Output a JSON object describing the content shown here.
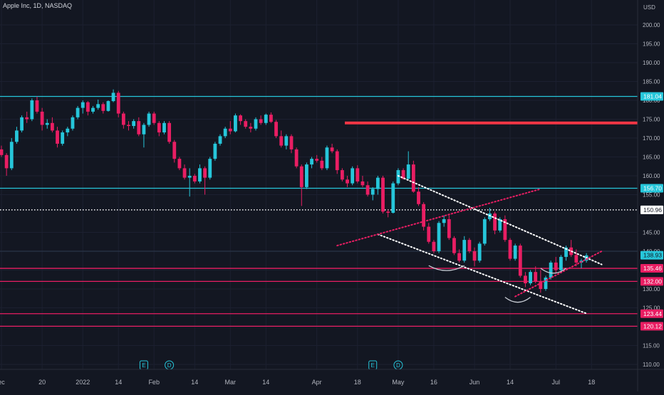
{
  "header": {
    "title": "Apple Inc, 1D, NASDAQ",
    "currency": "USD"
  },
  "chart_data": {
    "type": "candlestick",
    "ylim": [
      105,
      206
    ],
    "y_ticks": [
      110,
      115,
      120,
      125,
      130,
      135,
      140,
      145,
      155,
      160,
      165,
      170,
      175,
      180,
      185,
      190,
      195,
      200
    ],
    "x_ticks": [
      {
        "label": "ec",
        "i": 0
      },
      {
        "label": "20",
        "i": 8
      },
      {
        "label": "2022",
        "i": 16
      },
      {
        "label": "14",
        "i": 23
      },
      {
        "label": "Feb",
        "i": 30
      },
      {
        "label": "14",
        "i": 38
      },
      {
        "label": "Mar",
        "i": 45
      },
      {
        "label": "14",
        "i": 52
      },
      {
        "label": "Apr",
        "i": 62
      },
      {
        "label": "18",
        "i": 70
      },
      {
        "label": "May",
        "i": 78
      },
      {
        "label": "16",
        "i": 85
      },
      {
        "label": "Jun",
        "i": 93
      },
      {
        "label": "14",
        "i": 100
      },
      {
        "label": "Jul",
        "i": 109
      },
      {
        "label": "18",
        "i": 116
      }
    ],
    "candles": [
      [
        167.0,
        168.0,
        165.0,
        165.5
      ],
      [
        165.5,
        166.0,
        160.0,
        162.0
      ],
      [
        162.0,
        170.0,
        161.5,
        169.0
      ],
      [
        169.0,
        173.0,
        168.5,
        172.0
      ],
      [
        172.0,
        176.0,
        171.5,
        175.5
      ],
      [
        175.5,
        177.0,
        174.0,
        175.0
      ],
      [
        175.0,
        180.5,
        174.5,
        180.0
      ],
      [
        180.0,
        181.0,
        176.5,
        177.0
      ],
      [
        177.0,
        178.0,
        172.0,
        173.5
      ],
      [
        173.5,
        175.0,
        172.5,
        174.0
      ],
      [
        174.0,
        175.5,
        171.5,
        172.0
      ],
      [
        172.0,
        173.0,
        167.5,
        168.5
      ],
      [
        168.5,
        172.0,
        168.0,
        171.5
      ],
      [
        171.5,
        173.0,
        170.5,
        172.5
      ],
      [
        172.5,
        176.0,
        172.0,
        175.5
      ],
      [
        175.5,
        178.5,
        175.0,
        178.0
      ],
      [
        178.0,
        180.0,
        176.5,
        179.5
      ],
      [
        179.5,
        179.8,
        176.0,
        177.0
      ],
      [
        177.0,
        178.5,
        176.5,
        178.0
      ],
      [
        178.0,
        180.2,
        177.5,
        179.0
      ],
      [
        179.0,
        179.5,
        176.5,
        177.2
      ],
      [
        177.2,
        180.0,
        177.0,
        179.8
      ],
      [
        179.8,
        182.9,
        179.5,
        182.0
      ],
      [
        182.0,
        182.5,
        175.5,
        176.5
      ],
      [
        176.5,
        177.0,
        172.5,
        173.5
      ],
      [
        173.5,
        174.5,
        172.0,
        173.2
      ],
      [
        173.2,
        175.0,
        172.5,
        174.5
      ],
      [
        174.5,
        175.5,
        170.5,
        171.0
      ],
      [
        171.0,
        174.0,
        167.5,
        173.5
      ],
      [
        173.5,
        177.0,
        173.0,
        176.5
      ],
      [
        176.5,
        177.0,
        173.5,
        174.0
      ],
      [
        174.0,
        174.5,
        170.5,
        171.5
      ],
      [
        171.5,
        174.5,
        171.0,
        174.0
      ],
      [
        174.0,
        174.5,
        168.5,
        169.0
      ],
      [
        169.0,
        169.5,
        163.5,
        164.5
      ],
      [
        164.5,
        165.0,
        161.5,
        162.0
      ],
      [
        162.0,
        163.0,
        159.0,
        159.5
      ],
      [
        159.5,
        162.0,
        154.5,
        160.0
      ],
      [
        160.0,
        160.5,
        158.0,
        158.5
      ],
      [
        158.5,
        163.0,
        158.0,
        162.0
      ],
      [
        162.0,
        162.5,
        155.0,
        159.5
      ],
      [
        159.5,
        165.0,
        159.0,
        164.5
      ],
      [
        164.5,
        169.0,
        164.0,
        168.5
      ],
      [
        168.5,
        171.0,
        168.0,
        170.5
      ],
      [
        170.5,
        173.0,
        170.0,
        172.5
      ],
      [
        172.5,
        174.5,
        171.0,
        171.8
      ],
      [
        171.8,
        176.5,
        171.5,
        176.0
      ],
      [
        176.0,
        176.3,
        173.5,
        174.5
      ],
      [
        174.5,
        175.0,
        172.5,
        173.0
      ],
      [
        173.0,
        174.0,
        171.5,
        172.5
      ],
      [
        172.5,
        175.5,
        172.0,
        175.0
      ],
      [
        175.0,
        176.0,
        173.5,
        174.0
      ],
      [
        174.0,
        176.5,
        173.5,
        176.2
      ],
      [
        176.2,
        176.8,
        174.0,
        174.3
      ],
      [
        174.3,
        174.8,
        170.0,
        170.5
      ],
      [
        170.5,
        172.0,
        167.5,
        168.0
      ],
      [
        168.0,
        171.0,
        167.0,
        170.5
      ],
      [
        170.5,
        171.0,
        166.0,
        167.0
      ],
      [
        167.0,
        167.5,
        162.0,
        162.5
      ],
      [
        162.5,
        163.0,
        152.0,
        157.0
      ],
      [
        157.0,
        163.5,
        156.5,
        163.0
      ],
      [
        163.0,
        165.0,
        162.0,
        164.5
      ],
      [
        164.5,
        165.5,
        163.5,
        164.0
      ],
      [
        164.0,
        165.0,
        161.5,
        162.0
      ],
      [
        162.0,
        168.0,
        161.5,
        167.5
      ],
      [
        167.5,
        168.5,
        166.0,
        166.5
      ],
      [
        166.5,
        167.0,
        160.5,
        161.5
      ],
      [
        161.5,
        162.0,
        158.5,
        159.0
      ],
      [
        159.0,
        160.0,
        157.0,
        158.0
      ],
      [
        158.0,
        162.5,
        157.5,
        162.0
      ],
      [
        162.0,
        162.8,
        158.0,
        158.5
      ],
      [
        158.5,
        160.0,
        157.0,
        157.5
      ],
      [
        157.5,
        158.5,
        154.5,
        155.0
      ],
      [
        155.0,
        157.0,
        153.5,
        156.5
      ],
      [
        156.5,
        160.0,
        155.0,
        159.5
      ],
      [
        159.5,
        160.0,
        150.0,
        150.5
      ],
      [
        150.5,
        151.0,
        149.0,
        150.2
      ],
      [
        150.2,
        158.5,
        150.0,
        158.0
      ],
      [
        158.0,
        162.0,
        157.5,
        161.5
      ],
      [
        161.5,
        162.0,
        159.0,
        159.2
      ],
      [
        159.2,
        166.5,
        159.0,
        163.0
      ],
      [
        163.0,
        164.0,
        155.5,
        155.8
      ],
      [
        155.8,
        157.0,
        152.0,
        152.5
      ],
      [
        152.5,
        153.0,
        145.5,
        146.5
      ],
      [
        146.5,
        147.5,
        142.0,
        142.5
      ],
      [
        142.5,
        143.0,
        139.5,
        140.0
      ],
      [
        140.0,
        148.0,
        139.5,
        147.5
      ],
      [
        147.5,
        149.5,
        146.5,
        148.5
      ],
      [
        148.5,
        149.5,
        143.0,
        143.5
      ],
      [
        143.5,
        144.0,
        139.0,
        139.5
      ],
      [
        139.5,
        140.5,
        137.0,
        137.5
      ],
      [
        137.5,
        144.0,
        137.0,
        143.0
      ],
      [
        143.0,
        143.5,
        139.5,
        140.0
      ],
      [
        140.0,
        141.0,
        136.0,
        137.5
      ],
      [
        137.5,
        142.5,
        137.0,
        142.0
      ],
      [
        142.0,
        149.0,
        141.5,
        148.5
      ],
      [
        148.5,
        151.5,
        148.0,
        150.0
      ],
      [
        150.0,
        150.5,
        144.5,
        145.5
      ],
      [
        145.5,
        149.0,
        145.0,
        148.5
      ],
      [
        148.5,
        149.5,
        142.5,
        143.0
      ],
      [
        143.0,
        143.5,
        137.5,
        138.0
      ],
      [
        138.0,
        142.0,
        137.5,
        141.5
      ],
      [
        141.5,
        142.0,
        133.0,
        133.5
      ],
      [
        133.5,
        134.5,
        130.5,
        131.5
      ],
      [
        131.5,
        135.0,
        131.0,
        134.5
      ],
      [
        134.5,
        136.0,
        131.5,
        132.0
      ],
      [
        132.0,
        135.0,
        129.0,
        130.0
      ],
      [
        130.0,
        133.5,
        129.5,
        133.0
      ],
      [
        133.0,
        137.5,
        132.5,
        137.0
      ],
      [
        137.0,
        138.5,
        134.0,
        135.0
      ],
      [
        135.0,
        139.0,
        134.5,
        138.5
      ],
      [
        138.5,
        141.5,
        137.5,
        141.0
      ],
      [
        141.0,
        143.0,
        138.5,
        139.0
      ],
      [
        139.0,
        140.5,
        136.0,
        137.0
      ],
      [
        137.0,
        138.0,
        135.5,
        137.5
      ],
      [
        137.5,
        139.5,
        137.0,
        138.9
      ]
    ],
    "horizontal_levels": [
      {
        "price": 181.04,
        "label": "181.04",
        "color": "#26c6da",
        "style": "solid"
      },
      {
        "price": 174.0,
        "label": "",
        "color": "#f23645",
        "style": "thick"
      },
      {
        "price": 156.7,
        "label": "156.70",
        "color": "#26c6da",
        "style": "solid"
      },
      {
        "price": 150.96,
        "label": "150.96",
        "color": "#ffffff",
        "style": "dotted"
      },
      {
        "price": 140.0,
        "label": "",
        "color": "#2a3548",
        "style": "solid"
      },
      {
        "price": 135.46,
        "label": "135.46",
        "color": "#e91e63",
        "style": "solid"
      },
      {
        "price": 132.0,
        "label": "132.00",
        "color": "#e91e63",
        "style": "solid"
      },
      {
        "price": 123.44,
        "label": "123.44",
        "color": "#e91e63",
        "style": "solid"
      },
      {
        "price": 120.12,
        "label": "120.12",
        "color": "#e91e63",
        "style": "solid"
      }
    ],
    "last_price": {
      "value": 138.93,
      "label": "138.93",
      "color": "#26c6da"
    },
    "trendlines": [
      {
        "color": "#ffffff",
        "from": {
          "i": 78,
          "p": 160.0
        },
        "to": {
          "i": 118,
          "p": 136.5
        }
      },
      {
        "color": "#ffffff",
        "from": {
          "i": 74,
          "p": 144.5
        },
        "to": {
          "i": 115,
          "p": 123.5
        }
      },
      {
        "color": "#e91e63",
        "from": {
          "i": 66,
          "p": 141.5
        },
        "to": {
          "i": 106,
          "p": 156.5
        }
      },
      {
        "color": "#e91e63",
        "from": {
          "i": 101,
          "p": 128.0
        },
        "to": {
          "i": 118,
          "p": 140.0
        }
      }
    ],
    "arcs": [
      {
        "color": "#c8ccd4",
        "from": {
          "i": 84,
          "p": 136.2
        },
        "to": {
          "i": 91,
          "p": 136.2
        }
      },
      {
        "color": "#c8ccd4",
        "from": {
          "i": 99,
          "p": 127.8
        },
        "to": {
          "i": 104,
          "p": 127.8
        }
      },
      {
        "color": "#c8ccd4",
        "from": {
          "i": 106,
          "p": 135.5
        },
        "to": {
          "i": 111,
          "p": 135.5
        }
      }
    ],
    "events": [
      {
        "i": 28,
        "label": "E"
      },
      {
        "i": 33,
        "label": "D"
      },
      {
        "i": 73,
        "label": "E"
      },
      {
        "i": 78,
        "label": "D"
      }
    ],
    "up_color": "#26c6da",
    "down_color": "#e91e63"
  }
}
